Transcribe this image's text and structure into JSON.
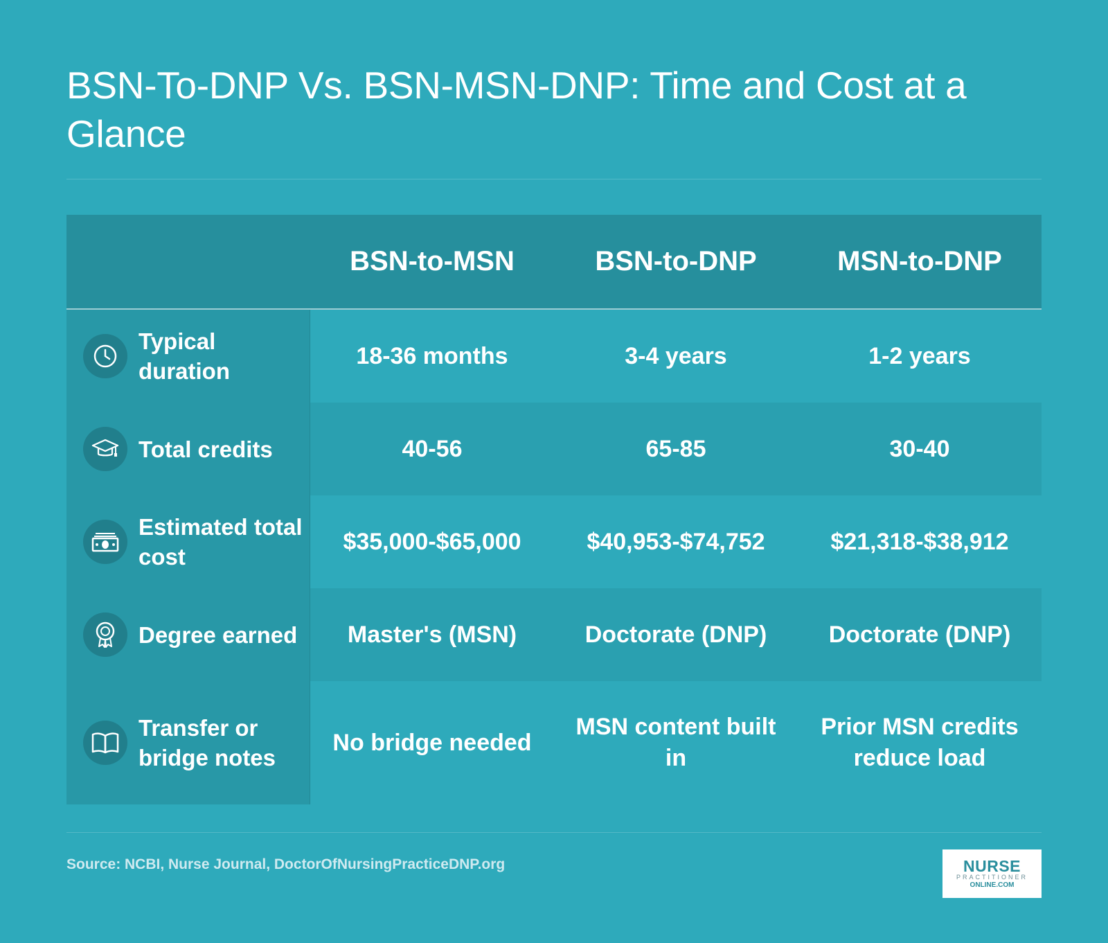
{
  "title": "BSN-To-DNP Vs. BSN-MSN-DNP: Time and Cost at a Glance",
  "columns": [
    "BSN-to-MSN",
    "BSN-to-DNP",
    "MSN-to-DNP"
  ],
  "rows": [
    {
      "label": "Typical duration",
      "icon": "clock-icon",
      "values": [
        "18-36 months",
        "3-4 years",
        "1-2 years"
      ]
    },
    {
      "label": "Total credits",
      "icon": "graduation-cap-icon",
      "values": [
        "40-56",
        "65-85",
        "30-40"
      ]
    },
    {
      "label": "Estimated total cost",
      "icon": "money-icon",
      "values": [
        "$35,000-$65,000",
        "$40,953-$74,752",
        "$21,318-$38,912"
      ]
    },
    {
      "label": "Degree earned",
      "icon": "award-ribbon-icon",
      "values": [
        "Master's (MSN)",
        "Doctorate (DNP)",
        "Doctorate (DNP)"
      ]
    },
    {
      "label": "Transfer or bridge notes",
      "icon": "open-book-icon",
      "values": [
        "No bridge needed",
        "MSN content built in",
        "Prior MSN credits reduce load"
      ]
    }
  ],
  "chart_data": {
    "type": "table",
    "title": "BSN-To-DNP Vs. BSN-MSN-DNP: Time and Cost at a Glance",
    "columns": [
      "BSN-to-MSN",
      "BSN-to-DNP",
      "MSN-to-DNP"
    ],
    "row_labels": [
      "Typical duration",
      "Total credits",
      "Estimated total cost",
      "Degree earned",
      "Transfer or bridge notes"
    ],
    "cells": [
      [
        "18-36 months",
        "3-4 years",
        "1-2 years"
      ],
      [
        "40-56",
        "65-85",
        "30-40"
      ],
      [
        "$35,000-$65,000",
        "$40,953-$74,752",
        "$21,318-$38,912"
      ],
      [
        "Master's (MSN)",
        "Doctorate (DNP)",
        "Doctorate (DNP)"
      ],
      [
        "No bridge needed",
        "MSN content built in",
        "Prior MSN credits reduce load"
      ]
    ]
  },
  "source": "Source: NCBI, Nurse Journal, DoctorOfNursingPracticeDNP.org",
  "logo": {
    "line1": "NURSE",
    "line2": "PRACTITIONER",
    "line3": "ONLINE.COM"
  },
  "colors": {
    "background": "#2eaabb",
    "header": "#268f9d",
    "label_column": "#2898a7",
    "icon_circle": "#217f8c"
  }
}
